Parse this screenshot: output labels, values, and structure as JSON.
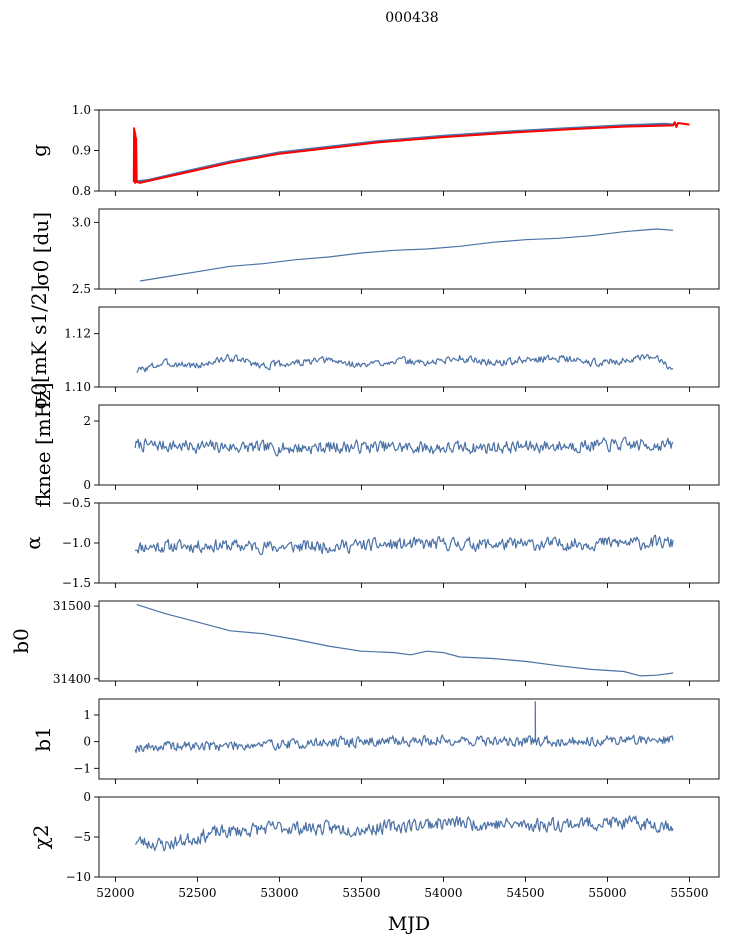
{
  "chart_data": {
    "type": "line",
    "title": "000438",
    "xlabel": "MJD",
    "xlim": [
      51900,
      55680
    ],
    "xticks": [
      52000,
      52500,
      53000,
      53500,
      54000,
      54500,
      55000,
      55500
    ],
    "xtick_labels": [
      "52000",
      "52500",
      "53000",
      "53500",
      "54000",
      "54500",
      "55000",
      "55500"
    ],
    "colors": {
      "series": "#4c72a6",
      "overlay": "#ff0000"
    },
    "panels": [
      {
        "id": "g",
        "ylabel_text": "g",
        "ylim": [
          0.8,
          1.0
        ],
        "yticks": [
          0.8,
          0.9,
          1.0
        ],
        "ytick_labels": [
          "0.8",
          "0.9",
          "1.0"
        ],
        "series": [
          {
            "name": "g",
            "color": "#4c72a6",
            "width": 3,
            "x": [
              52115,
              52130,
              52200,
              52400,
              52700,
              53000,
              53300,
              53600,
              54000,
              54400,
              54800,
              55100,
              55350,
              55400
            ],
            "y": [
              0.827,
              0.823,
              0.826,
              0.845,
              0.872,
              0.894,
              0.908,
              0.922,
              0.935,
              0.946,
              0.955,
              0.961,
              0.965,
              0.963
            ]
          },
          {
            "name": "g fit",
            "color": "#ff0000",
            "width": 2,
            "x": [
              52112,
              52114,
              52116,
              52118,
              52120,
              52122,
              52124,
              52126,
              52130,
              52150,
              52200,
              52400,
              52700,
              53000,
              53300,
              53600,
              54000,
              54400,
              54800,
              55100,
              55400,
              55410,
              55420,
              55430,
              55500
            ],
            "y": [
              0.822,
              0.955,
              0.83,
              0.948,
              0.82,
              0.94,
              0.826,
              0.93,
              0.823,
              0.82,
              0.825,
              0.843,
              0.87,
              0.892,
              0.906,
              0.92,
              0.933,
              0.944,
              0.953,
              0.959,
              0.962,
              0.97,
              0.958,
              0.968,
              0.964
            ]
          }
        ]
      },
      {
        "id": "sigma0-du",
        "ylabel_text": "σ0 [du]",
        "ylim": [
          2.5,
          3.1
        ],
        "yticks": [
          2.5,
          3.0
        ],
        "ytick_labels": [
          "2.5",
          "3.0"
        ],
        "series": [
          {
            "name": "sigma0 du",
            "color": "#4c72a6",
            "width": 1.2,
            "x": [
              52150,
              52300,
              52500,
              52700,
              52900,
              53100,
              53300,
              53500,
              53700,
              53900,
              54100,
              54300,
              54500,
              54700,
              54900,
              55100,
              55300,
              55400
            ],
            "y": [
              2.56,
              2.59,
              2.63,
              2.67,
              2.69,
              2.72,
              2.74,
              2.77,
              2.79,
              2.8,
              2.82,
              2.85,
              2.87,
              2.88,
              2.9,
              2.93,
              2.95,
              2.94
            ]
          }
        ]
      },
      {
        "id": "sigma0-mk",
        "ylabel_text": "σ0[mK s1/2]",
        "ylim": [
          1.1,
          1.13
        ],
        "yticks": [
          1.1,
          1.12
        ],
        "ytick_labels": [
          "1.10",
          "1.12"
        ],
        "series": [
          {
            "name": "sigma0 mK",
            "color": "#4c72a6",
            "width": 1.2,
            "noise": 0.0012,
            "seed": 3,
            "x": [
              52130,
              52300,
              52500,
              52700,
              52900,
              53100,
              53300,
              53500,
              53700,
              53900,
              54100,
              54300,
              54500,
              54700,
              54900,
              55100,
              55300,
              55400
            ],
            "y": [
              1.106,
              1.109,
              1.108,
              1.111,
              1.108,
              1.109,
              1.11,
              1.108,
              1.11,
              1.109,
              1.111,
              1.109,
              1.11,
              1.111,
              1.109,
              1.11,
              1.111,
              1.107
            ]
          }
        ]
      },
      {
        "id": "fknee",
        "ylabel_text": "fknee [mHz]",
        "ylim": [
          0,
          2.5
        ],
        "yticks": [
          0,
          2
        ],
        "ytick_labels": [
          "0",
          "2"
        ],
        "series": [
          {
            "name": "fknee",
            "color": "#4c72a6",
            "width": 1.2,
            "noise": 0.17,
            "seed": 7,
            "x": [
              52120,
              52600,
              53000,
              53500,
              54000,
              54500,
              55000,
              55400
            ],
            "y": [
              1.25,
              1.2,
              1.15,
              1.2,
              1.15,
              1.2,
              1.25,
              1.25
            ]
          }
        ]
      },
      {
        "id": "alpha",
        "ylabel_text": "α",
        "ylim": [
          -1.5,
          -0.5
        ],
        "yticks": [
          -1.5,
          -1.0,
          -0.5
        ],
        "ytick_labels": [
          "−1.5",
          "−1.0",
          "−0.5"
        ],
        "series": [
          {
            "name": "alpha",
            "color": "#4c72a6",
            "width": 1.2,
            "noise": 0.07,
            "seed": 11,
            "x": [
              52120,
              52600,
              53000,
              53500,
              54000,
              54500,
              55000,
              55400
            ],
            "y": [
              -1.05,
              -1.03,
              -1.05,
              -1.03,
              -1.01,
              -1.02,
              -1.0,
              -1.0
            ]
          }
        ]
      },
      {
        "id": "b0",
        "ylabel_text": "b0",
        "ylim": [
          31397,
          31507
        ],
        "yticks": [
          31400,
          31500
        ],
        "ytick_labels": [
          "31400",
          "31500"
        ],
        "series": [
          {
            "name": "b0",
            "color": "#4c72a6",
            "width": 1.2,
            "x": [
              52130,
              52300,
              52500,
              52700,
              52900,
              53100,
              53300,
              53500,
              53700,
              53800,
              53900,
              54000,
              54100,
              54300,
              54500,
              54700,
              54900,
              55100,
              55200,
              55300,
              55400
            ],
            "y": [
              31502,
              31490,
              31478,
              31466,
              31462,
              31454,
              31445,
              31438,
              31436,
              31433,
              31438,
              31436,
              31430,
              31428,
              31424,
              31418,
              31413,
              31410,
              31404,
              31405,
              31408
            ]
          }
        ]
      },
      {
        "id": "b1",
        "ylabel_text": "b1",
        "ylim": [
          -1.4,
          1.6
        ],
        "yticks": [
          -1,
          0,
          1
        ],
        "ytick_labels": [
          "−1",
          "0",
          "1"
        ],
        "series": [
          {
            "name": "b1",
            "color": "#4c72a6",
            "width": 1.2,
            "noise": 0.17,
            "seed": 19,
            "x": [
              52120,
              52600,
              53000,
              53500,
              54000,
              54500,
              55000,
              55400
            ],
            "y": [
              -0.2,
              -0.15,
              -0.1,
              0.0,
              0.05,
              0.0,
              0.05,
              0.1
            ]
          }
        ]
      },
      {
        "id": "chi2",
        "ylabel_text": "χ2",
        "ylim": [
          -10,
          0
        ],
        "yticks": [
          -10,
          -5,
          0
        ],
        "ytick_labels": [
          "−10",
          "−5",
          "0"
        ],
        "series": [
          {
            "name": "chi2",
            "color": "#4c72a6",
            "width": 1.2,
            "noise": 0.75,
            "seed": 23,
            "x": [
              52120,
              52300,
              52600,
              53000,
              53500,
              54000,
              54500,
              55000,
              55400
            ],
            "y": [
              -5.5,
              -6.0,
              -4.5,
              -3.8,
              -4.0,
              -3.2,
              -3.5,
              -3.2,
              -3.5
            ]
          }
        ]
      }
    ]
  }
}
